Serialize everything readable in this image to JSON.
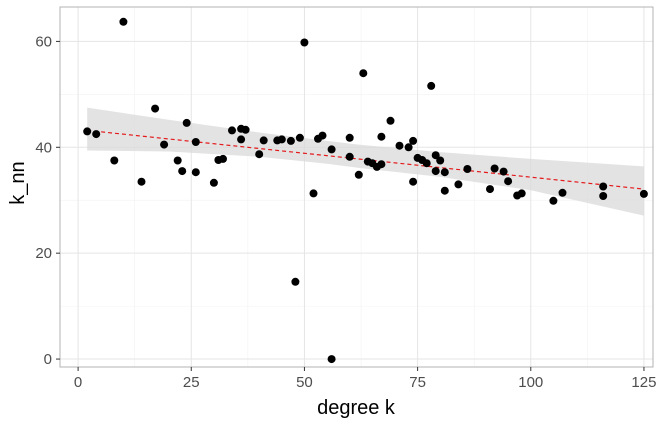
{
  "chart_data": {
    "type": "scatter",
    "title": "",
    "xlabel": "degree k",
    "ylabel": "k_nn",
    "xlim": [
      -4,
      127
    ],
    "ylim": [
      -1.5,
      66.5
    ],
    "x_ticks": [
      0,
      25,
      50,
      75,
      100,
      125
    ],
    "y_ticks": [
      0,
      20,
      40,
      60
    ],
    "grid": true,
    "legend": "none",
    "series": [
      {
        "points": [
          [
            2,
            43
          ],
          [
            4,
            42.5
          ],
          [
            8,
            37.5
          ],
          [
            10,
            63.7
          ],
          [
            14,
            33.5
          ],
          [
            17,
            47.3
          ],
          [
            19,
            40.5
          ],
          [
            22,
            37.5
          ],
          [
            23,
            35.5
          ],
          [
            24,
            44.6
          ],
          [
            26,
            41
          ],
          [
            26,
            35.3
          ],
          [
            30,
            33.3
          ],
          [
            31,
            37.6
          ],
          [
            32,
            37.8
          ],
          [
            34,
            43.2
          ],
          [
            36,
            41.5
          ],
          [
            36,
            43.5
          ],
          [
            37,
            43.3
          ],
          [
            40,
            38.7
          ],
          [
            41,
            41.3
          ],
          [
            44,
            41.3
          ],
          [
            45,
            41.5
          ],
          [
            47,
            41.2
          ],
          [
            48,
            14.6
          ],
          [
            49,
            41.8
          ],
          [
            50,
            59.8
          ],
          [
            52,
            31.3
          ],
          [
            53,
            41.6
          ],
          [
            54,
            42.2
          ],
          [
            56,
            39.6
          ],
          [
            56,
            0
          ],
          [
            60,
            41.8
          ],
          [
            60,
            38.2
          ],
          [
            62,
            34.8
          ],
          [
            63,
            54
          ],
          [
            64,
            37.3
          ],
          [
            65,
            37
          ],
          [
            66,
            36.3
          ],
          [
            67,
            36.8
          ],
          [
            67,
            42
          ],
          [
            69,
            45
          ],
          [
            71,
            40.3
          ],
          [
            73,
            40
          ],
          [
            74,
            41.2
          ],
          [
            74,
            33.5
          ],
          [
            75,
            38
          ],
          [
            76,
            37.6
          ],
          [
            77,
            37
          ],
          [
            78,
            51.6
          ],
          [
            79,
            35.5
          ],
          [
            79,
            38.5
          ],
          [
            80,
            37.5
          ],
          [
            81,
            35.3
          ],
          [
            81,
            31.8
          ],
          [
            84,
            33
          ],
          [
            86,
            35.9
          ],
          [
            91,
            32.1
          ],
          [
            92,
            36
          ],
          [
            94,
            35.4
          ],
          [
            95,
            33.6
          ],
          [
            97,
            30.9
          ],
          [
            98,
            31.3
          ],
          [
            105,
            29.9
          ],
          [
            107,
            31.4
          ],
          [
            116,
            32.6
          ],
          [
            116,
            30.8
          ],
          [
            125,
            31.2
          ]
        ]
      }
    ],
    "trend_line": {
      "x": [
        2,
        125
      ],
      "y": [
        43.2,
        32.1
      ]
    },
    "confidence_band": {
      "x": [
        2,
        20,
        40,
        55,
        62,
        80,
        100,
        125
      ],
      "upper": [
        47.5,
        45.2,
        42.8,
        41.2,
        40.5,
        39.1,
        37.8,
        36.4
      ],
      "lower": [
        39.4,
        39.2,
        38.2,
        36.9,
        36.1,
        34.4,
        31.9,
        27.1
      ]
    },
    "colors": {
      "point": "#000000",
      "trend_line": "#e41a1c",
      "band": "#d9d9d9",
      "panel_border": "#b3b3b3",
      "grid_major": "#e5e5e5",
      "grid_minor": "#f2f2f2"
    }
  }
}
